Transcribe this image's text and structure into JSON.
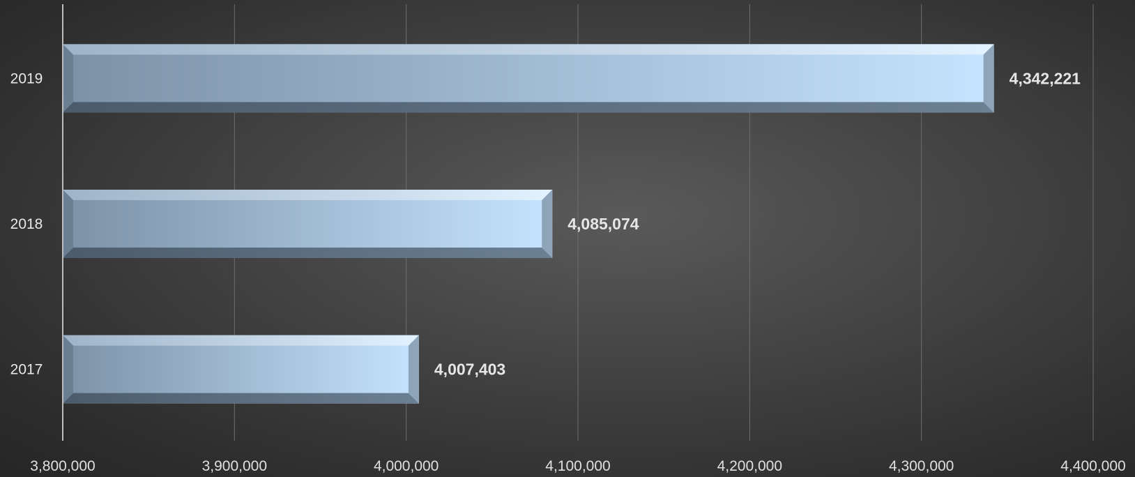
{
  "chart_data": {
    "type": "bar",
    "orientation": "horizontal",
    "categories": [
      "2017",
      "2018",
      "2019"
    ],
    "values": [
      4007403,
      4085074,
      4342221
    ],
    "value_labels": [
      "4,007,403",
      "4,085,074",
      "4,342,221"
    ],
    "xlim": [
      3800000,
      4400000
    ],
    "x_ticks": [
      3800000,
      3900000,
      4000000,
      4100000,
      4200000,
      4300000,
      4400000
    ],
    "x_tick_labels": [
      "3,800,000",
      "3,900,000",
      "4,000,000",
      "4,100,000",
      "4,200,000",
      "4,300,000",
      "4,400,000"
    ],
    "title": "",
    "xlabel": "",
    "ylabel": "",
    "grid": true,
    "legend": "none",
    "colors": {
      "bar_light": "#c6e4ff",
      "bar_dark": "#7b91a6",
      "bar_edge_top": "#dcefff",
      "bar_edge_bottom": "#56687a",
      "grid": "#6e6e6e",
      "axis": "#bdbdbd"
    }
  }
}
